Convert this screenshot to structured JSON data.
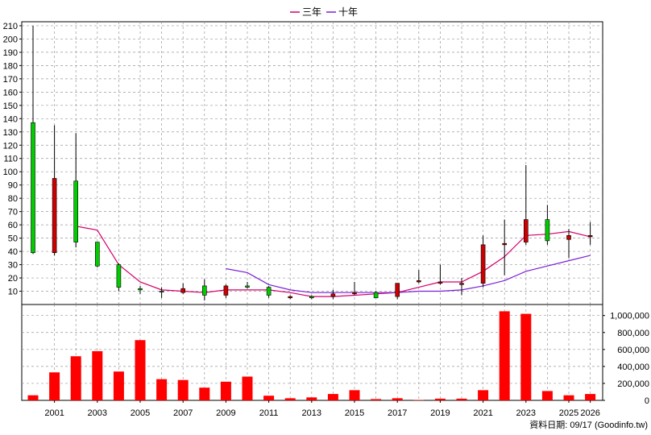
{
  "chart_data": {
    "type": "candlestick",
    "legend": [
      {
        "label": "三年",
        "color": "#d4006e"
      },
      {
        "label": "十年",
        "color": "#7a1fd6"
      }
    ],
    "footer": "資料日期: 09/17  (Goodinfo.tw)",
    "colors": {
      "up": "#00cc00",
      "down": "#cc0000",
      "volume": "#ff0000",
      "grid": "#999999",
      "axis": "#000000"
    },
    "price_axis": {
      "ticks": [
        10,
        20,
        30,
        40,
        50,
        60,
        70,
        80,
        90,
        100,
        110,
        120,
        130,
        140,
        150,
        160,
        170,
        180,
        190,
        200,
        210
      ],
      "ylim": [
        0,
        213
      ]
    },
    "volume_axis": {
      "ticks": [
        "0",
        "200,000",
        "400,000",
        "600,000",
        "800,000",
        "1,000,000"
      ],
      "values": [
        0,
        200000,
        400000,
        600000,
        800000,
        1000000
      ],
      "ylim": [
        0,
        1130000
      ]
    },
    "x_labels": [
      "2001",
      "2003",
      "2005",
      "2007",
      "2009",
      "2011",
      "2013",
      "2015",
      "2017",
      "2019",
      "2021",
      "2023",
      "2025",
      "2026"
    ],
    "candles": [
      {
        "year": 2000,
        "open": 39,
        "high": 210,
        "low": 38,
        "close": 137
      },
      {
        "year": 2001,
        "open": 95,
        "high": 135,
        "low": 37,
        "close": 39
      },
      {
        "year": 2002,
        "open": 47,
        "high": 129,
        "low": 43,
        "close": 93
      },
      {
        "year": 2003,
        "open": 29,
        "high": 47,
        "low": 28,
        "close": 47
      },
      {
        "year": 2004,
        "open": 13,
        "high": 31,
        "low": 10,
        "close": 30
      },
      {
        "year": 2005,
        "open": 11,
        "high": 14,
        "low": 8,
        "close": 12
      },
      {
        "year": 2006,
        "open": 10,
        "high": 13,
        "low": 5,
        "close": 10
      },
      {
        "year": 2007,
        "open": 12,
        "high": 16,
        "low": 8,
        "close": 9
      },
      {
        "year": 2008,
        "open": 7,
        "high": 19,
        "low": 3,
        "close": 14
      },
      {
        "year": 2009,
        "open": 14,
        "high": 15,
        "low": 5,
        "close": 7
      },
      {
        "year": 2010,
        "open": 13,
        "high": 17,
        "low": 12,
        "close": 14
      },
      {
        "year": 2011,
        "open": 7,
        "high": 14,
        "low": 5,
        "close": 13
      },
      {
        "year": 2012,
        "open": 6,
        "high": 7,
        "low": 4,
        "close": 5
      },
      {
        "year": 2013,
        "open": 5,
        "high": 7,
        "low": 4,
        "close": 6
      },
      {
        "year": 2014,
        "open": 8,
        "high": 11,
        "low": 4,
        "close": 6
      },
      {
        "year": 2015,
        "open": 9,
        "high": 17,
        "low": 7,
        "close": 8
      },
      {
        "year": 2016,
        "open": 5,
        "high": 10,
        "low": 5,
        "close": 9
      },
      {
        "year": 2017,
        "open": 16,
        "high": 16,
        "low": 4,
        "close": 6
      },
      {
        "year": 2018,
        "open": 18,
        "high": 26,
        "low": 16,
        "close": 17
      },
      {
        "year": 2019,
        "open": 17,
        "high": 30,
        "low": 15,
        "close": 16
      },
      {
        "year": 2020,
        "open": 16,
        "high": 20,
        "low": 7,
        "close": 15
      },
      {
        "year": 2021,
        "open": 45,
        "high": 52,
        "low": 13,
        "close": 16
      },
      {
        "year": 2022,
        "open": 46,
        "high": 64,
        "low": 22,
        "close": 45
      },
      {
        "year": 2023,
        "open": 64,
        "high": 105,
        "low": 45,
        "close": 47
      },
      {
        "year": 2024,
        "open": 48,
        "high": 75,
        "low": 45,
        "close": 64
      },
      {
        "year": 2025,
        "open": 52,
        "high": 57,
        "low": 35,
        "close": 49
      },
      {
        "year": 2026,
        "open": 52,
        "high": 62,
        "low": 45,
        "close": 51
      }
    ],
    "volumes": [
      {
        "year": 2000,
        "value": 60000
      },
      {
        "year": 2001,
        "value": 330000
      },
      {
        "year": 2002,
        "value": 520000
      },
      {
        "year": 2003,
        "value": 580000
      },
      {
        "year": 2004,
        "value": 340000
      },
      {
        "year": 2005,
        "value": 710000
      },
      {
        "year": 2006,
        "value": 250000
      },
      {
        "year": 2007,
        "value": 240000
      },
      {
        "year": 2008,
        "value": 150000
      },
      {
        "year": 2009,
        "value": 220000
      },
      {
        "year": 2010,
        "value": 280000
      },
      {
        "year": 2011,
        "value": 55000
      },
      {
        "year": 2012,
        "value": 25000
      },
      {
        "year": 2013,
        "value": 35000
      },
      {
        "year": 2014,
        "value": 75000
      },
      {
        "year": 2015,
        "value": 120000
      },
      {
        "year": 2016,
        "value": 15000
      },
      {
        "year": 2017,
        "value": 25000
      },
      {
        "year": 2018,
        "value": 5000
      },
      {
        "year": 2019,
        "value": 20000
      },
      {
        "year": 2020,
        "value": 20000
      },
      {
        "year": 2021,
        "value": 120000
      },
      {
        "year": 2022,
        "value": 1050000
      },
      {
        "year": 2023,
        "value": 1020000
      },
      {
        "year": 2024,
        "value": 110000
      },
      {
        "year": 2025,
        "value": 60000
      },
      {
        "year": 2026,
        "value": 75000
      }
    ],
    "series": [
      {
        "name": "三年",
        "x": [
          2002,
          2003,
          2004,
          2005,
          2006,
          2007,
          2008,
          2009,
          2010,
          2011,
          2012,
          2013,
          2014,
          2015,
          2016,
          2017,
          2018,
          2019,
          2020,
          2021,
          2022,
          2023,
          2024,
          2025,
          2026
        ],
        "values": [
          59,
          56,
          30,
          17,
          11,
          10,
          9,
          11,
          11,
          11,
          9,
          6,
          6,
          7,
          8,
          9,
          13,
          17,
          17,
          25,
          36,
          52,
          53,
          55,
          51
        ]
      },
      {
        "name": "十年",
        "x": [
          2009,
          2010,
          2011,
          2012,
          2013,
          2014,
          2015,
          2016,
          2017,
          2018,
          2019,
          2020,
          2021,
          2022,
          2023,
          2024,
          2025,
          2026
        ],
        "values": [
          27,
          24,
          15,
          11,
          9,
          9,
          9,
          9,
          9,
          10,
          10,
          11,
          14,
          18,
          25,
          29,
          33,
          37
        ]
      }
    ]
  }
}
